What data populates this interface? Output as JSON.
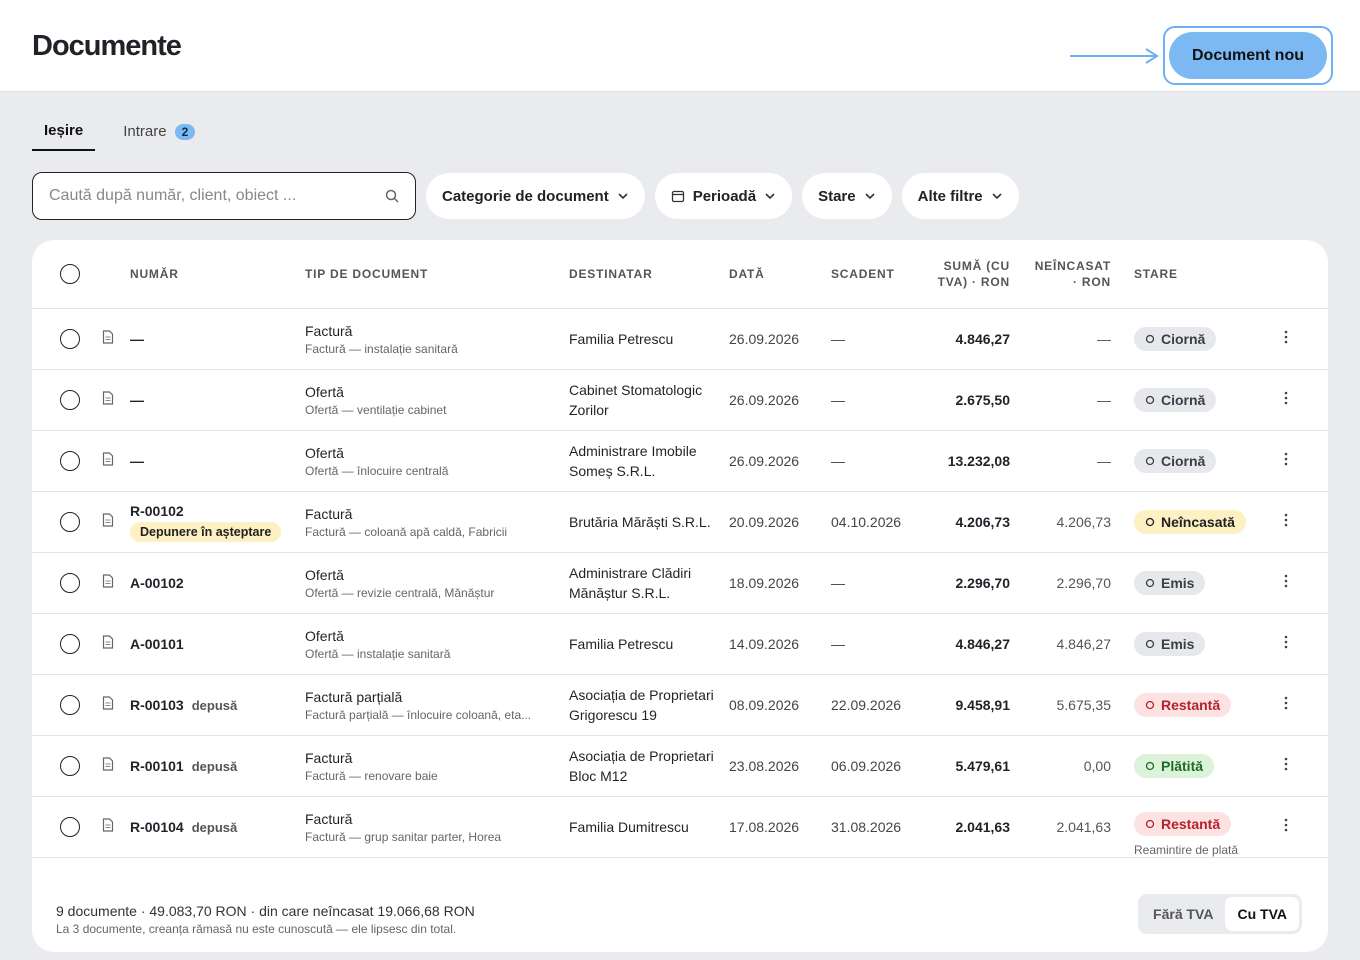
{
  "header": {
    "title": "Documente",
    "new_button": "Document nou"
  },
  "tabs": [
    {
      "label": "Ieșire"
    },
    {
      "label": "Intrare",
      "badge": 2
    }
  ],
  "filters": {
    "search_placeholder": "Caută după număr, client, obiect ...",
    "buttons": [
      "Categorie de document",
      "Perioadă",
      "Stare",
      "Alte filtre"
    ]
  },
  "table": {
    "columns": [
      "NUMĂR",
      "TIP DE DOCUMENT",
      "DESTINATAR",
      "DATĂ",
      "SCADENT",
      "SUMĂ (CU TVA) · RON",
      "NEÎNCASAT · RON",
      "STARE"
    ],
    "rows": [
      {
        "number": "—",
        "type": "Factură",
        "description": "Factură — instalație sanitară",
        "recipient": "Familia Petrescu",
        "date": "26.09.2026",
        "due": "—",
        "amount": "4.846,27",
        "outstanding": "—",
        "status": {
          "label": "Ciornă",
          "color": "#e6e8eb",
          "text_color": "#3a3f45"
        }
      },
      {
        "number": "—",
        "type": "Ofertă",
        "description": "Ofertă — ventilație cabinet",
        "recipient": "Cabinet Stomatologic Zorilor",
        "date": "26.09.2026",
        "due": "—",
        "amount": "2.675,50",
        "outstanding": "—",
        "status": {
          "label": "Ciornă",
          "color": "#e6e8eb",
          "text_color": "#3a3f45"
        }
      },
      {
        "number": "—",
        "type": "Ofertă",
        "description": "Ofertă — înlocuire centrală",
        "recipient": "Administrare Imobile Someș S.R.L.",
        "date": "26.09.2026",
        "due": "—",
        "amount": "13.232,08",
        "outstanding": "—",
        "status": {
          "label": "Ciornă",
          "color": "#e6e8eb",
          "text_color": "#3a3f45"
        }
      },
      {
        "number": "R-00102",
        "pending": "Depunere în așteptare",
        "type": "Factură",
        "description": "Factură — coloană apă caldă, Fabricii",
        "recipient": "Brutăria Mărăști S.R.L.",
        "date": "20.09.2026",
        "due": "04.10.2026",
        "amount": "4.206,73",
        "outstanding": "4.206,73",
        "status": {
          "label": "Neîncasată",
          "color": "#fdf0c2",
          "text_color": "#222222"
        }
      },
      {
        "number": "A-00102",
        "type": "Ofertă",
        "description": "Ofertă — revizie centrală, Mănăștur",
        "recipient": "Administrare Clădiri Mănăștur S.R.L.",
        "date": "18.09.2026",
        "due": "—",
        "amount": "2.296,70",
        "outstanding": "2.296,70",
        "status": {
          "label": "Emis",
          "color": "#e6e8eb",
          "text_color": "#3a3f45"
        }
      },
      {
        "number": "A-00101",
        "type": "Ofertă",
        "description": "Ofertă — instalație sanitară",
        "recipient": "Familia Petrescu",
        "date": "14.09.2026",
        "due": "—",
        "amount": "4.846,27",
        "outstanding": "4.846,27",
        "status": {
          "label": "Emis",
          "color": "#e6e8eb",
          "text_color": "#3a3f45"
        }
      },
      {
        "number": "R-00103",
        "tag": "depusă",
        "type": "Factură parțială",
        "description": "Factură parțială — înlocuire coloană, eta...",
        "recipient": "Asociația de Proprietari Grigorescu 19",
        "date": "08.09.2026",
        "due": "22.09.2026",
        "amount": "9.458,91",
        "outstanding": "5.675,35",
        "status": {
          "label": "Restantă",
          "color": "#fde2e4",
          "text_color": "#b4232a"
        }
      },
      {
        "number": "R-00101",
        "tag": "depusă",
        "type": "Factură",
        "description": "Factură — renovare baie",
        "recipient": "Asociația de Proprietari Bloc M12",
        "date": "23.08.2026",
        "due": "06.09.2026",
        "amount": "5.479,61",
        "outstanding": "0,00",
        "status": {
          "label": "Plătită",
          "color": "#dcf3da",
          "text_color": "#1d6b2a"
        }
      },
      {
        "number": "R-00104",
        "tag": "depusă",
        "type": "Factură",
        "description": "Factură — grup sanitar parter, Horea",
        "recipient": "Familia Dumitrescu",
        "date": "17.08.2026",
        "due": "31.08.2026",
        "amount": "2.041,63",
        "outstanding": "2.041,63",
        "status": {
          "label": "Restantă",
          "color": "#fde2e4",
          "text_color": "#b4232a"
        },
        "note": "Reamintire de plată"
      }
    ]
  },
  "footer": {
    "summary": "9 documente · 49.083,70 RON · din care neîncasat 19.066,68 RON",
    "note": "La 3 documente, creanța rămasă nu este cunoscută — ele lipsesc din total.",
    "vat_toggle": {
      "options": [
        "Fără TVA",
        "Cu TVA"
      ],
      "selected": 1
    }
  }
}
